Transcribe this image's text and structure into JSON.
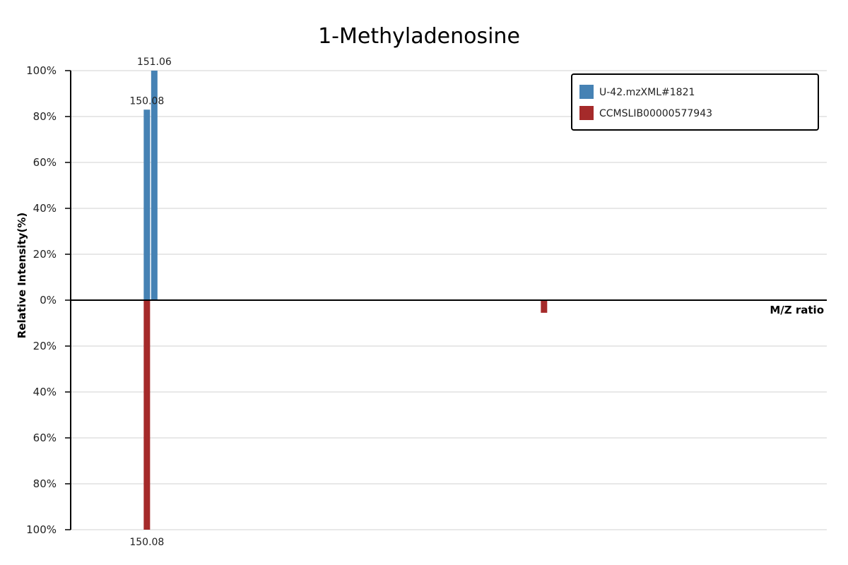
{
  "chart_data": {
    "type": "bar",
    "title": "1-Methyladenosine",
    "xlabel": "M/Z ratio",
    "ylabel": "Relative Intensity(%)",
    "y_tick_labels_top": [
      "100%",
      "80%",
      "60%",
      "40%",
      "20%",
      "0%"
    ],
    "y_tick_labels_bottom": [
      "20%",
      "40%",
      "60%",
      "80%",
      "100%"
    ],
    "ylim": [
      -100,
      100
    ],
    "xlim": [
      140,
      240
    ],
    "grid": true,
    "legend_position": "top-right",
    "series": [
      {
        "name": "U-42.mzXML#1821",
        "color": "#4682b4",
        "direction": "up",
        "peaks": [
          {
            "mz": 150.08,
            "intensity": 83,
            "label": "150.08"
          },
          {
            "mz": 151.06,
            "intensity": 100,
            "label": "151.06"
          }
        ]
      },
      {
        "name": "CCMSLIB00000577943",
        "color": "#a52a2a",
        "direction": "down",
        "peaks": [
          {
            "mz": 150.08,
            "intensity": 100,
            "label": "150.08"
          },
          {
            "mz": 202.6,
            "intensity": 5.5,
            "label": ""
          }
        ]
      }
    ]
  }
}
